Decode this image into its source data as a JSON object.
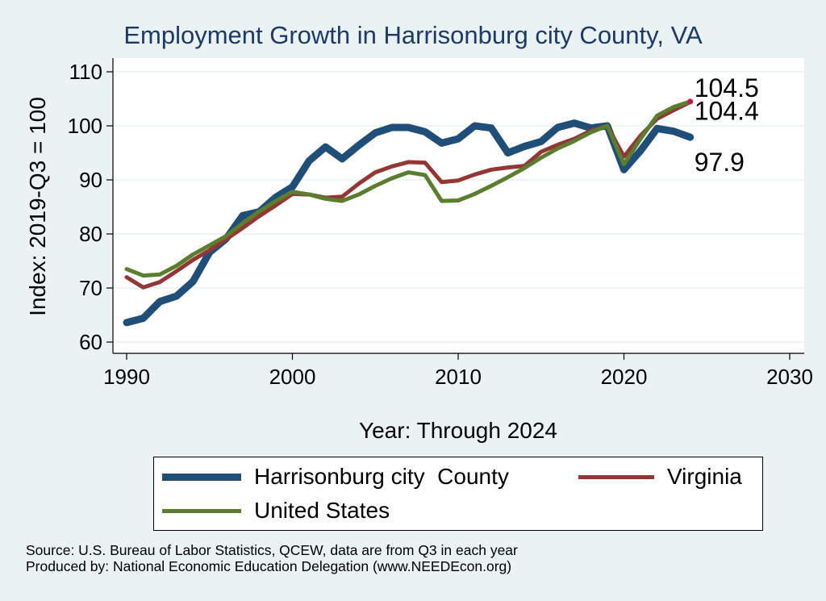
{
  "colors": {
    "background": "#eaf2f3",
    "plot_background": "#ffffff",
    "title": "#1b3a6b",
    "grid": "#eaf2f3",
    "harrisonburg": "#1f4e79",
    "virginia": "#943634",
    "united_states": "#5a7d2e",
    "endpoint_marker": "#c8174b"
  },
  "chart_data": {
    "type": "line",
    "title": "Employment Growth in Harrisonburg city County, VA",
    "xlabel": "Year: Through 2024",
    "ylabel": "Index: 2019-Q3 = 100",
    "xlim": [
      1990,
      2030
    ],
    "ylim": [
      60,
      110
    ],
    "xticks": [
      1990,
      2000,
      2010,
      2020,
      2030
    ],
    "yticks": [
      60,
      70,
      80,
      90,
      100,
      110
    ],
    "grid": true,
    "legend_position": "bottom",
    "x": [
      1990,
      1991,
      1992,
      1993,
      1994,
      1995,
      1996,
      1997,
      1998,
      1999,
      2000,
      2001,
      2002,
      2003,
      2004,
      2005,
      2006,
      2007,
      2008,
      2009,
      2010,
      2011,
      2012,
      2013,
      2014,
      2015,
      2016,
      2017,
      2018,
      2019,
      2020,
      2021,
      2022,
      2023,
      2024
    ],
    "series": [
      {
        "name": "Harrisonburg city  County",
        "color": "#1f4e79",
        "width": 9,
        "end_label": "97.9",
        "values": [
          63.6,
          64.4,
          67.5,
          68.5,
          71.2,
          76.6,
          79.1,
          83.4,
          84.1,
          86.8,
          88.7,
          93.5,
          96.1,
          93.9,
          96.4,
          98.7,
          99.7,
          99.7,
          98.9,
          96.8,
          97.6,
          100.0,
          99.6,
          95.0,
          96.2,
          97.1,
          99.7,
          100.5,
          99.6,
          100.0,
          91.9,
          95.4,
          99.5,
          99.0,
          97.9
        ]
      },
      {
        "name": "Virginia",
        "color": "#943634",
        "width": 5,
        "end_label": "104.4",
        "values": [
          72.0,
          70.1,
          71.1,
          73.1,
          75.2,
          77.0,
          79.0,
          81.1,
          83.3,
          85.3,
          87.4,
          87.3,
          86.7,
          86.9,
          89.3,
          91.4,
          92.5,
          93.3,
          93.2,
          89.6,
          89.9,
          91.0,
          91.9,
          92.3,
          92.6,
          95.2,
          96.5,
          97.6,
          99.1,
          100.0,
          94.3,
          98.2,
          101.3,
          102.9,
          104.4
        ]
      },
      {
        "name": "United States",
        "color": "#5a7d2e",
        "width": 5,
        "end_label": "104.5",
        "values": [
          73.5,
          72.3,
          72.5,
          74.1,
          76.2,
          77.9,
          79.6,
          82.0,
          84.2,
          86.1,
          87.8,
          87.3,
          86.5,
          86.1,
          87.3,
          88.9,
          90.3,
          91.4,
          90.9,
          86.1,
          86.2,
          87.4,
          88.9,
          90.5,
          92.2,
          94.1,
          95.8,
          97.2,
          98.8,
          100.0,
          92.9,
          97.6,
          101.9,
          103.5,
          104.5
        ]
      }
    ]
  },
  "source": {
    "line1": "Source: U.S. Bureau of Labor Statistics, QCEW, data are from Q3 in each year",
    "line2": "Produced by: National Economic Education Delegation (www.NEEDEcon.org)"
  }
}
